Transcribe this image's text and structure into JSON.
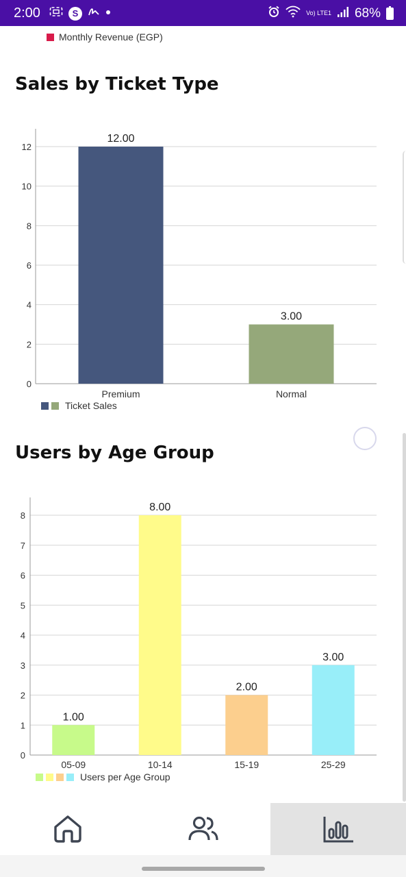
{
  "status_bar": {
    "time": "2:00",
    "battery": "68%",
    "network": "Vo) LTE1",
    "icons": [
      "screenshot-icon",
      "s-app-icon",
      "signature-icon",
      "dot-icon",
      "alarm-icon",
      "wifi-icon",
      "signal-icon",
      "battery-icon"
    ]
  },
  "top_legend": {
    "label": "Monthly Revenue (EGP)",
    "color": "#d81b4a"
  },
  "sections": {
    "ticket": {
      "title": "Sales by Ticket Type"
    },
    "age": {
      "title": "Users by Age Group"
    }
  },
  "chart_data": [
    {
      "type": "bar",
      "title": "Sales by Ticket Type",
      "categories": [
        "Premium",
        "Normal"
      ],
      "series": [
        {
          "name": "Ticket Sales",
          "values": [
            12,
            3
          ]
        }
      ],
      "data_labels": [
        "12.00",
        "3.00"
      ],
      "colors": [
        "#45577d",
        "#95a87a"
      ],
      "ylim": [
        0,
        12
      ],
      "yticks": [
        0,
        2,
        4,
        6,
        8,
        10,
        12
      ],
      "grid": true,
      "legend": "bottom-left",
      "xlabel": "",
      "ylabel": ""
    },
    {
      "type": "bar",
      "title": "Users by Age Group",
      "categories": [
        "05-09",
        "10-14",
        "15-19",
        "25-29"
      ],
      "series": [
        {
          "name": "Users per Age Group",
          "values": [
            1,
            8,
            2,
            3
          ]
        }
      ],
      "data_labels": [
        "1.00",
        "8.00",
        "2.00",
        "3.00"
      ],
      "colors": [
        "#c7fa8a",
        "#fffb8a",
        "#fccf8e",
        "#98eef9"
      ],
      "ylim": [
        0,
        8
      ],
      "yticks": [
        0,
        1,
        2,
        3,
        4,
        5,
        6,
        7,
        8
      ],
      "grid": true,
      "legend": "bottom-left",
      "xlabel": "",
      "ylabel": ""
    }
  ],
  "bottom_nav": {
    "items": [
      {
        "name": "home",
        "icon": "home-icon",
        "active": false
      },
      {
        "name": "users",
        "icon": "users-icon",
        "active": false
      },
      {
        "name": "stats",
        "icon": "bar-chart-icon",
        "active": true
      }
    ]
  }
}
